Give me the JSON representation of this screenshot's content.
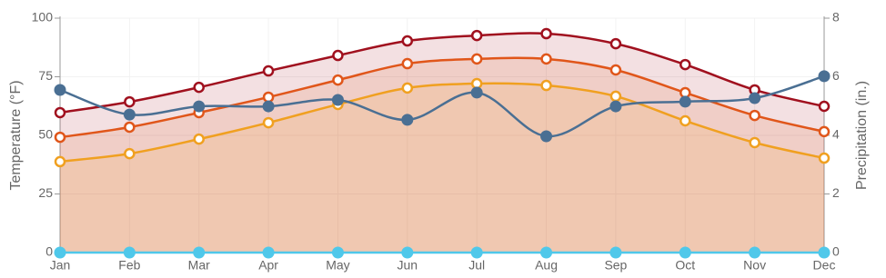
{
  "chart_data": {
    "type": "line",
    "categories": [
      "Jan",
      "Feb",
      "Mar",
      "Apr",
      "May",
      "Jun",
      "Jul",
      "Aug",
      "Sep",
      "Oct",
      "Nov",
      "Dec"
    ],
    "y_label": "Temperature (°F)",
    "y2_label": "Precipitation (in.)",
    "ylim": [
      0,
      100
    ],
    "yticks": [
      0,
      25,
      50,
      75,
      100
    ],
    "y2lim": [
      0,
      8
    ],
    "y2ticks": [
      0,
      2,
      4,
      6,
      8
    ],
    "grid": true,
    "series": [
      {
        "color": "#a0101e",
        "fill": true,
        "values": [
          59.7,
          64.3,
          70.5,
          77.5,
          84.1,
          90.3,
          92.6,
          93.4,
          89.1,
          80.2,
          69.4,
          62.4
        ]
      },
      {
        "color": "#e0561a",
        "fill": true,
        "values": [
          49.2,
          53.5,
          59.7,
          66.3,
          73.6,
          80.6,
          82.6,
          82.6,
          77.9,
          68.2,
          58.5,
          51.6
        ]
      },
      {
        "color": "#f0a020",
        "fill": true,
        "values": [
          38.8,
          42.2,
          48.4,
          55.4,
          63.2,
          70.2,
          72.1,
          71.3,
          66.7,
          56.2,
          46.9,
          40.3
        ]
      },
      {
        "color": "#4a6f93",
        "fill": false,
        "axis": "y2",
        "values": [
          5.55,
          4.71,
          4.99,
          4.99,
          5.21,
          4.53,
          5.46,
          3.97,
          4.99,
          5.15,
          5.27,
          6.02
        ]
      },
      {
        "color": "#4fc8ea",
        "fill": false,
        "axis": "y2",
        "values": [
          0,
          0,
          0,
          0,
          0,
          0,
          0,
          0,
          0,
          0,
          0,
          0
        ]
      }
    ]
  }
}
